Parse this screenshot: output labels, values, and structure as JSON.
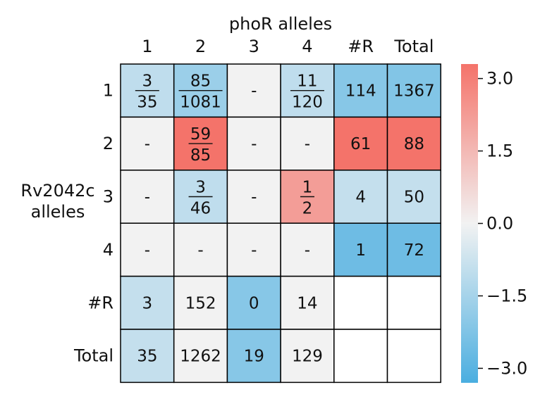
{
  "chart_data": {
    "type": "heatmap",
    "title": "phoR alleles",
    "ylabel_lines": [
      "Rv2042c",
      "alleles"
    ],
    "x_tick_labels": [
      "1",
      "2",
      "3",
      "4",
      "#R",
      "Total"
    ],
    "y_tick_labels": [
      "1",
      "2",
      "3",
      "4",
      "#R",
      "Total"
    ],
    "cells": [
      [
        {
          "label": {
            "num": "3",
            "den": "35"
          },
          "value": -1.0
        },
        {
          "label": {
            "num": "85",
            "den": "1081"
          },
          "value": -1.7
        },
        {
          "label": "-",
          "value": 0
        },
        {
          "label": {
            "num": "11",
            "den": "120"
          },
          "value": -1.0
        },
        {
          "label": "114",
          "value": -2.1
        },
        {
          "label": "1367",
          "value": -2.2
        }
      ],
      [
        {
          "label": "-",
          "value": 0
        },
        {
          "label": {
            "num": "59",
            "den": "85"
          },
          "value": 3.3
        },
        {
          "label": "-",
          "value": 0
        },
        {
          "label": "-",
          "value": 0
        },
        {
          "label": "61",
          "value": 3.3
        },
        {
          "label": "88",
          "value": 3.3
        }
      ],
      [
        {
          "label": "-",
          "value": 0
        },
        {
          "label": {
            "num": "3",
            "den": "46"
          },
          "value": -1.0
        },
        {
          "label": "-",
          "value": 0
        },
        {
          "label": {
            "num": "1",
            "den": "2"
          },
          "value": 2.2
        },
        {
          "label": "4",
          "value": -0.9
        },
        {
          "label": "50",
          "value": -0.9
        }
      ],
      [
        {
          "label": "-",
          "value": 0
        },
        {
          "label": "-",
          "value": 0
        },
        {
          "label": "-",
          "value": 0
        },
        {
          "label": "-",
          "value": 0
        },
        {
          "label": "1",
          "value": -2.6
        },
        {
          "label": "72",
          "value": -2.6
        }
      ],
      [
        {
          "label": "3",
          "value": -0.9
        },
        {
          "label": "152",
          "value": 0
        },
        {
          "label": "0",
          "value": -2.1
        },
        {
          "label": "14",
          "value": 0
        },
        {
          "label": "",
          "value": null
        },
        {
          "label": "",
          "value": null
        }
      ],
      [
        {
          "label": "35",
          "value": -0.9
        },
        {
          "label": "1262",
          "value": 0
        },
        {
          "label": "19",
          "value": -2.1
        },
        {
          "label": "129",
          "value": 0
        },
        {
          "label": "",
          "value": null
        },
        {
          "label": "",
          "value": null
        }
      ]
    ],
    "colorbar": {
      "range": [
        -3.3,
        3.3
      ],
      "ticks": [
        3.0,
        1.5,
        0.0,
        -1.5,
        -3.0
      ],
      "tick_labels": [
        "3.0",
        "1.5",
        "0.0",
        "−1.5",
        "−3.0"
      ],
      "colors": {
        "low": "#4aaee0",
        "mid": "#f2f2f2",
        "high": "#f4736a"
      }
    }
  }
}
